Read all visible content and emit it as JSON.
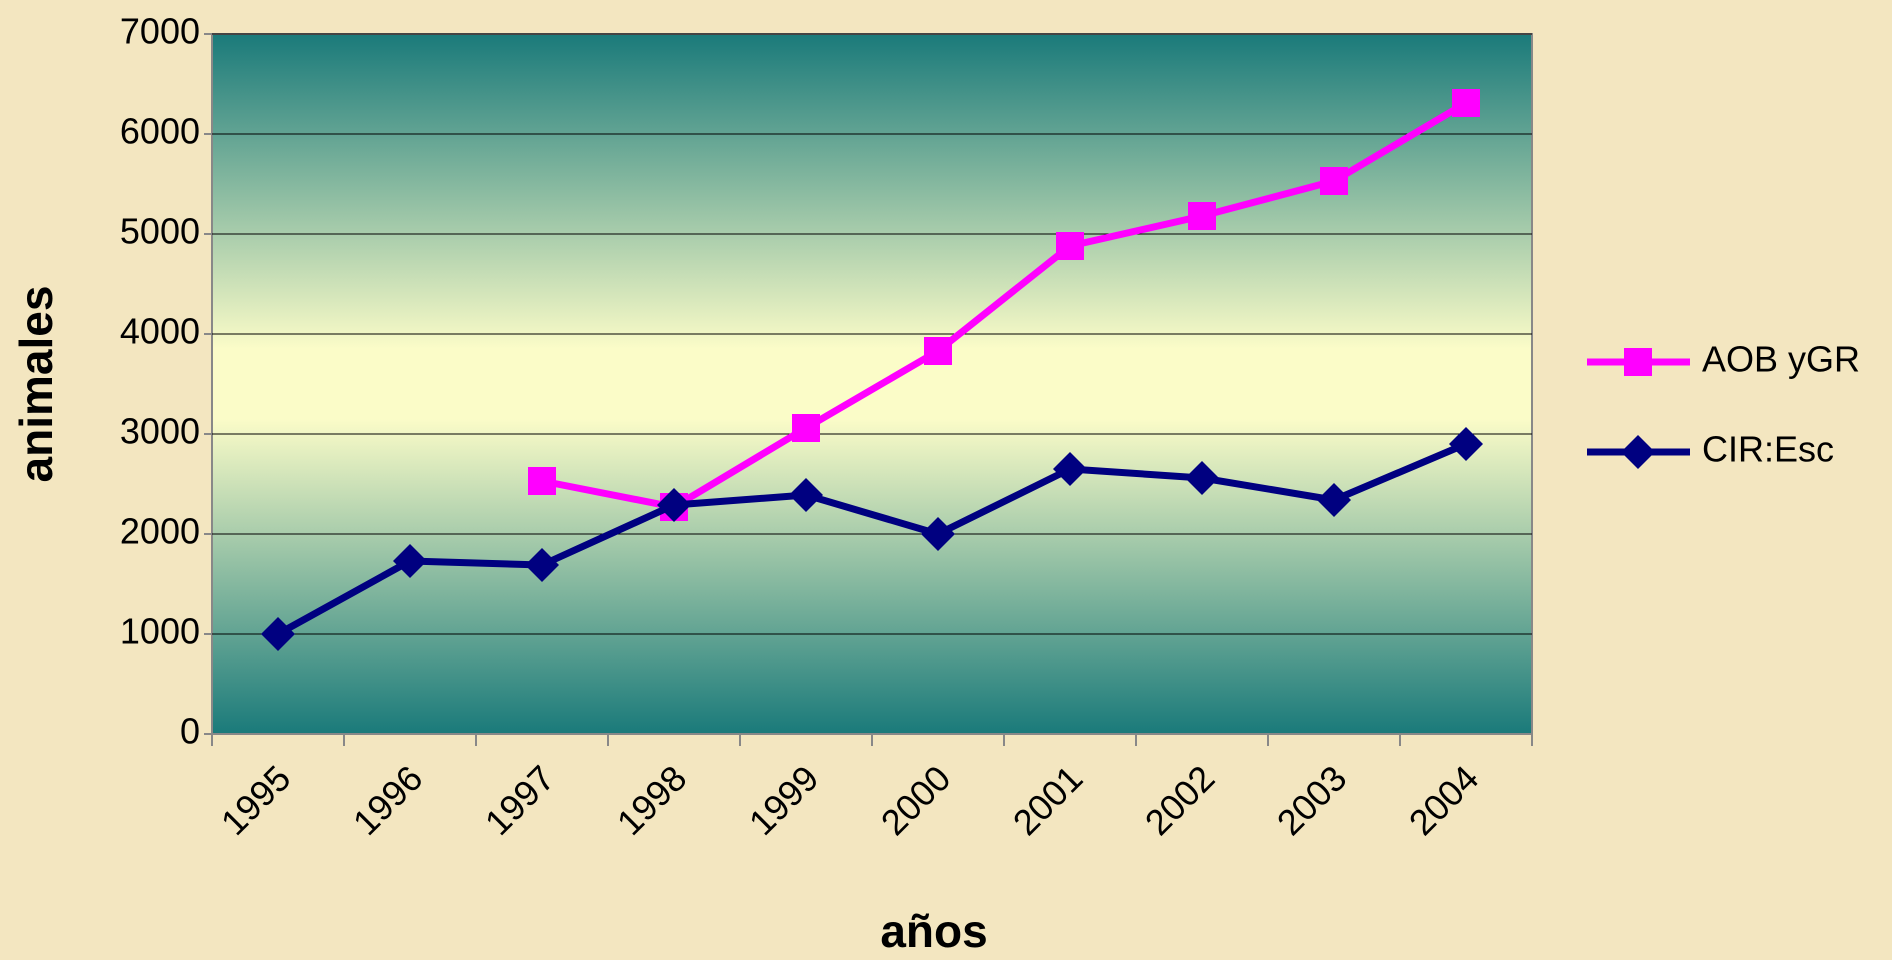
{
  "chart_data": {
    "type": "line",
    "x_label": "años",
    "y_label": "animales",
    "categories": [
      "1995",
      "1996",
      "1997",
      "1998",
      "1999",
      "2000",
      "2001",
      "2002",
      "2003",
      "2004"
    ],
    "series": [
      {
        "name": "AOB yGR",
        "color": "#ff00ff",
        "marker": "square",
        "values": [
          null,
          null,
          2530,
          2270,
          3060,
          3830,
          4880,
          5180,
          5530,
          6310
        ]
      },
      {
        "name": "CIR:Esc",
        "color": "#000080",
        "marker": "diamond",
        "values": [
          1000,
          1730,
          1690,
          2290,
          2390,
          2000,
          2650,
          2560,
          2340,
          2900
        ]
      }
    ],
    "ylim": [
      0,
      7000
    ],
    "yticks": [
      0,
      1000,
      2000,
      3000,
      4000,
      5000,
      6000,
      7000
    ],
    "grid": true,
    "legend": "right"
  }
}
